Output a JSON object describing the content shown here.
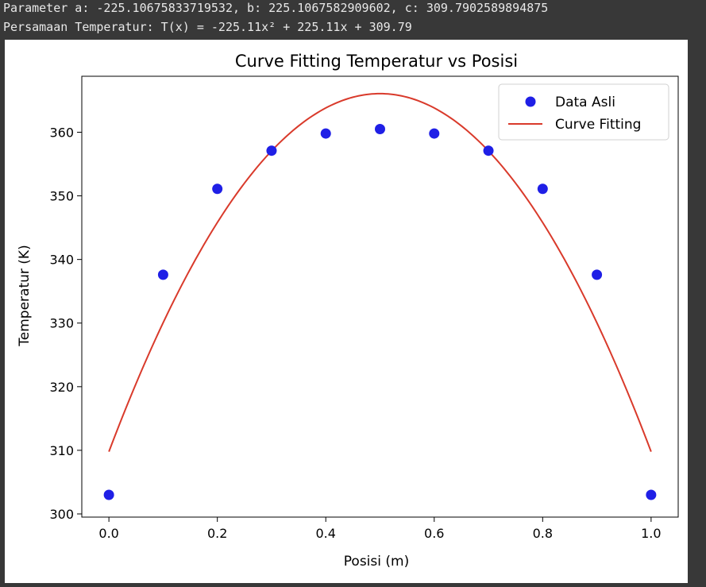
{
  "console": {
    "line1": "Parameter a: -225.10675833719532, b: 225.1067582909602, c: 309.7902589894875",
    "line2": "Persamaan Temperatur: T(x) = -225.11x² + 225.11x + 309.79"
  },
  "chart_data": {
    "type": "scatter",
    "title": "Curve Fitting Temperatur vs Posisi",
    "xlabel": "Posisi (m)",
    "ylabel": "Temperatur (K)",
    "xlim": [
      -0.05,
      1.05
    ],
    "ylim": [
      299.5,
      368.8
    ],
    "xticks": [
      "0.0",
      "0.2",
      "0.4",
      "0.6",
      "0.8",
      "1.0"
    ],
    "xtick_values": [
      0.0,
      0.2,
      0.4,
      0.6,
      0.8,
      1.0
    ],
    "yticks": [
      "300",
      "310",
      "320",
      "330",
      "340",
      "350",
      "360"
    ],
    "ytick_values": [
      300,
      310,
      320,
      330,
      340,
      350,
      360
    ],
    "grid": false,
    "legend_position": "top-right",
    "series": [
      {
        "name": "Data Asli",
        "kind": "scatter",
        "color": "#1f1fe6",
        "x": [
          0.0,
          0.1,
          0.2,
          0.3,
          0.4,
          0.5,
          0.6,
          0.7,
          0.8,
          0.9,
          1.0
        ],
        "y": [
          303.0,
          337.6,
          351.1,
          357.1,
          359.8,
          360.5,
          359.8,
          357.1,
          351.1,
          337.6,
          303.0
        ]
      },
      {
        "name": "Curve Fitting",
        "kind": "line",
        "color": "#d93a2b",
        "coefficients": {
          "a": -225.10675833719532,
          "b": 225.1067582909602,
          "c": 309.7902589894875
        },
        "x_range": [
          0.0,
          1.0
        ]
      }
    ]
  }
}
